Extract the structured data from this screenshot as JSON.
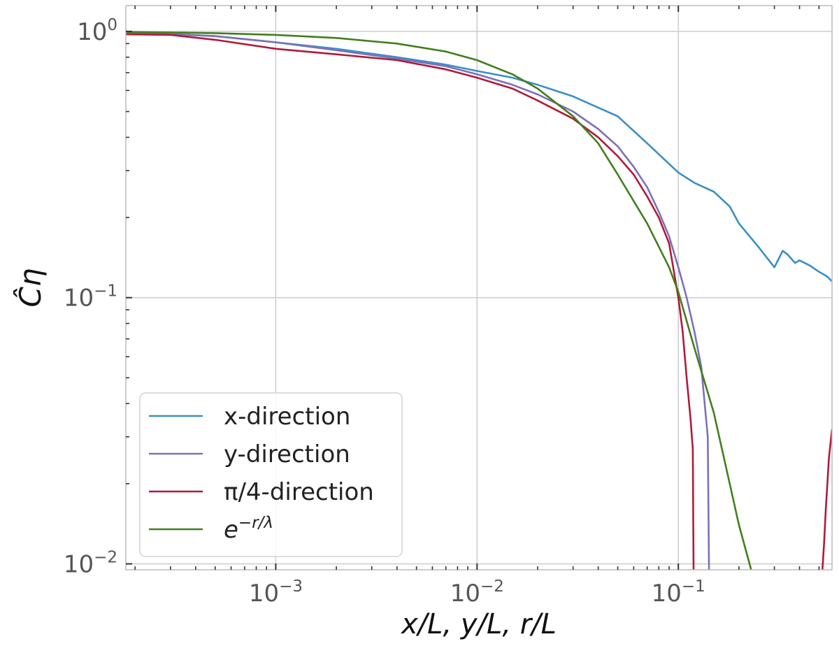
{
  "chart_data": {
    "type": "line",
    "title": "",
    "xlabel": "x/L, y/L, r/L",
    "ylabel": "Ĉη",
    "xscale": "log",
    "yscale": "log",
    "xlim": [
      0.00018,
      0.58
    ],
    "ylim": [
      0.0095,
      1.25
    ],
    "grid": true,
    "legend_position": "lower-left",
    "x_ticks": [
      {
        "value": 0.001,
        "base": "10",
        "exp": "−3"
      },
      {
        "value": 0.01,
        "base": "10",
        "exp": "−2"
      },
      {
        "value": 0.1,
        "base": "10",
        "exp": "−1"
      }
    ],
    "y_ticks": [
      {
        "value": 0.01,
        "base": "10",
        "exp": "−2"
      },
      {
        "value": 0.1,
        "base": "10",
        "exp": "−1"
      },
      {
        "value": 1,
        "base": "10",
        "exp": "0"
      }
    ],
    "series": [
      {
        "name": "x-direction",
        "label_kind": "plain",
        "color": "#3a8fc4",
        "x": [
          0.00018,
          0.00025,
          0.0005,
          0.001,
          0.002,
          0.004,
          0.007,
          0.01,
          0.015,
          0.02,
          0.03,
          0.05,
          0.07,
          0.1,
          0.12,
          0.15,
          0.18,
          0.2,
          0.25,
          0.3,
          0.33,
          0.35,
          0.38,
          0.4,
          0.45,
          0.5,
          0.55,
          0.58
        ],
        "y": [
          0.985,
          0.983,
          0.96,
          0.91,
          0.86,
          0.8,
          0.75,
          0.71,
          0.67,
          0.63,
          0.57,
          0.48,
          0.38,
          0.295,
          0.27,
          0.25,
          0.22,
          0.19,
          0.155,
          0.13,
          0.15,
          0.145,
          0.135,
          0.138,
          0.132,
          0.125,
          0.12,
          0.115
        ]
      },
      {
        "name": "y-direction",
        "label_kind": "plain",
        "color": "#7b72b8",
        "x": [
          0.00018,
          0.00025,
          0.0005,
          0.001,
          0.002,
          0.004,
          0.007,
          0.01,
          0.015,
          0.02,
          0.03,
          0.04,
          0.05,
          0.06,
          0.07,
          0.08,
          0.09,
          0.1,
          0.11,
          0.12,
          0.13,
          0.14,
          0.142
        ],
        "y": [
          0.985,
          0.982,
          0.96,
          0.91,
          0.85,
          0.79,
          0.74,
          0.69,
          0.63,
          0.58,
          0.5,
          0.43,
          0.37,
          0.31,
          0.26,
          0.21,
          0.17,
          0.13,
          0.1,
          0.075,
          0.055,
          0.03,
          0.0095
        ]
      },
      {
        "name": "π/4-direction",
        "label_kind": "plain",
        "color": "#b01a3a",
        "x": [
          0.00018,
          0.0003,
          0.0005,
          0.001,
          0.002,
          0.004,
          0.007,
          0.01,
          0.015,
          0.02,
          0.03,
          0.04,
          0.05,
          0.06,
          0.07,
          0.08,
          0.09,
          0.1,
          0.105,
          0.11,
          0.115,
          0.118,
          0.119
        ],
        "y": [
          0.975,
          0.97,
          0.93,
          0.86,
          0.82,
          0.78,
          0.72,
          0.67,
          0.61,
          0.55,
          0.47,
          0.4,
          0.34,
          0.29,
          0.24,
          0.2,
          0.16,
          0.1,
          0.075,
          0.05,
          0.035,
          0.027,
          0.0095
        ]
      },
      {
        "name": "π/4-direction tail",
        "label_kind": "hidden",
        "color": "#b01a3a",
        "x": [
          0.52,
          0.53,
          0.54,
          0.56,
          0.58
        ],
        "y": [
          0.0095,
          0.012,
          0.016,
          0.025,
          0.032
        ]
      },
      {
        "name": "e^{-r/λ}",
        "label_kind": "math",
        "label_base": "e",
        "label_exp": "−r/λ",
        "color": "#437e1e",
        "x": [
          0.00018,
          0.0003,
          0.0005,
          0.001,
          0.002,
          0.004,
          0.007,
          0.01,
          0.015,
          0.02,
          0.03,
          0.04,
          0.05,
          0.07,
          0.09,
          0.1,
          0.12,
          0.15,
          0.18,
          0.2,
          0.23
        ],
        "y": [
          0.995,
          0.99,
          0.985,
          0.97,
          0.945,
          0.9,
          0.84,
          0.78,
          0.69,
          0.61,
          0.48,
          0.38,
          0.29,
          0.19,
          0.13,
          0.105,
          0.065,
          0.037,
          0.02,
          0.014,
          0.0095
        ]
      }
    ]
  }
}
